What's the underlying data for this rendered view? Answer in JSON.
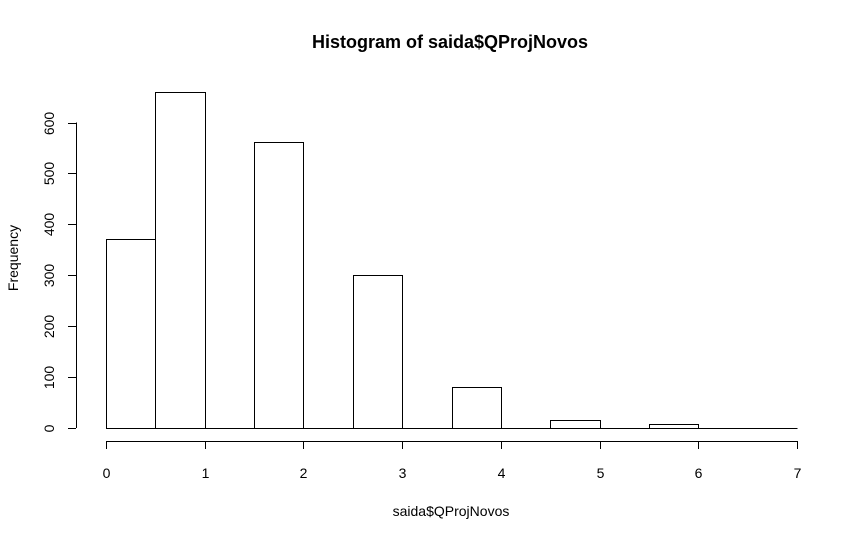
{
  "chart_data": {
    "type": "bar",
    "title": "Histogram of saida$QProjNovos",
    "xlabel": "saida$QProjNovos",
    "ylabel": "Frequency",
    "xlim": [
      0,
      7
    ],
    "ylim": [
      0,
      660
    ],
    "x_ticks": [
      0,
      1,
      2,
      3,
      4,
      5,
      6,
      7
    ],
    "y_ticks": [
      0,
      100,
      200,
      300,
      400,
      500,
      600
    ],
    "bins": [
      {
        "start": 0.0,
        "end": 0.5,
        "value": 372
      },
      {
        "start": 0.5,
        "end": 1.0,
        "value": 660
      },
      {
        "start": 1.0,
        "end": 1.5,
        "value": 0
      },
      {
        "start": 1.5,
        "end": 2.0,
        "value": 561
      },
      {
        "start": 2.0,
        "end": 2.5,
        "value": 0
      },
      {
        "start": 2.5,
        "end": 3.0,
        "value": 301
      },
      {
        "start": 3.0,
        "end": 3.5,
        "value": 0
      },
      {
        "start": 3.5,
        "end": 4.0,
        "value": 81
      },
      {
        "start": 4.0,
        "end": 4.5,
        "value": 0
      },
      {
        "start": 4.5,
        "end": 5.0,
        "value": 16
      },
      {
        "start": 5.0,
        "end": 5.5,
        "value": 0
      },
      {
        "start": 5.5,
        "end": 6.0,
        "value": 7
      },
      {
        "start": 6.0,
        "end": 6.5,
        "value": 0
      },
      {
        "start": 6.5,
        "end": 7.0,
        "value": 0
      }
    ]
  }
}
